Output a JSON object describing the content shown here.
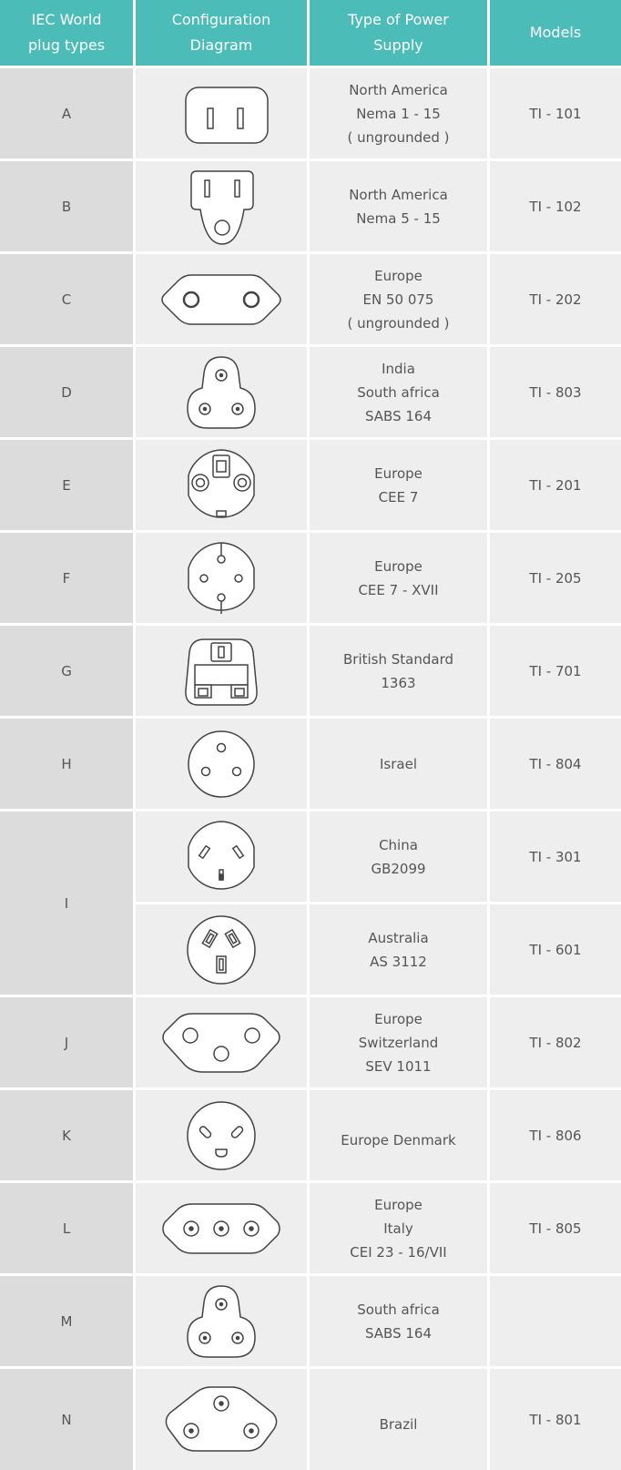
{
  "header": {
    "col1": "IEC World\nplug types",
    "col2": "Configuration\nDiagram",
    "col3": "Type of Power\nSupply",
    "col4": "Models"
  },
  "rows": [
    {
      "type": "A",
      "icon": "plug-type-a-icon",
      "supply": "North America\nNema 1 - 15\n( ungrounded )",
      "model": "TI - 101"
    },
    {
      "type": "B",
      "icon": "plug-type-b-icon",
      "supply": "North America\nNema 5 - 15",
      "model": "TI - 102"
    },
    {
      "type": "C",
      "icon": "plug-type-c-icon",
      "supply": "Europe\nEN 50 075\n( ungrounded )",
      "model": "TI - 202"
    },
    {
      "type": "D",
      "icon": "plug-type-d-icon",
      "supply": "India\nSouth africa\nSABS 164",
      "model": "TI - 803"
    },
    {
      "type": "E",
      "icon": "plug-type-e-icon",
      "supply": "Europe\nCEE 7",
      "model": "TI - 201"
    },
    {
      "type": "F",
      "icon": "plug-type-f-icon",
      "supply": "Europe\nCEE 7 - XVII",
      "model": "TI - 205"
    },
    {
      "type": "G",
      "icon": "plug-type-g-icon",
      "supply": "British Standard\n1363",
      "model": "TI - 701"
    },
    {
      "type": "H",
      "icon": "plug-type-h-icon",
      "supply": "Israel",
      "model": "TI - 804"
    },
    {
      "type": "I",
      "icon": "plug-type-i-china-icon",
      "supply": "China\nGB2099",
      "model": "TI - 301"
    },
    {
      "type": "",
      "icon": "plug-type-i-australia-icon",
      "supply": "Australia\nAS 3112",
      "model": "TI - 601"
    },
    {
      "type": "J",
      "icon": "plug-type-j-icon",
      "supply": "Europe\nSwitzerland\nSEV 1011",
      "model": "TI - 802"
    },
    {
      "type": "K",
      "icon": "plug-type-k-icon",
      "supply": "Europe Denmark",
      "model": "TI - 806"
    },
    {
      "type": "L",
      "icon": "plug-type-l-icon",
      "supply": "Europe\nItaly\nCEI 23 - 16/VII",
      "model": "TI - 805"
    },
    {
      "type": "M",
      "icon": "plug-type-m-icon",
      "supply": "South africa\nSABS 164",
      "model": ""
    },
    {
      "type": "N",
      "icon": "plug-type-n-icon",
      "supply": "Brazil",
      "model": "TI - 801"
    }
  ],
  "colors": {
    "header_bg": "#4bbcb8",
    "label_bg": "#dcdcdc",
    "body_bg": "#eeeeee"
  }
}
